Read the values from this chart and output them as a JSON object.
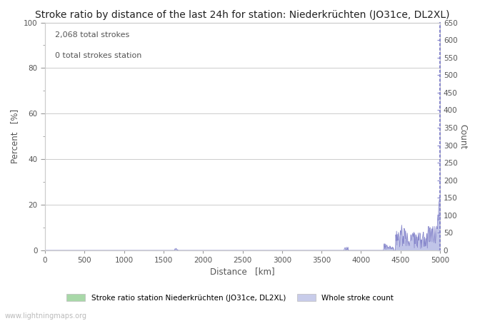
{
  "title": "Stroke ratio by distance of the last 24h for station: Niederkrüchten (JO31ce, DL2XL)",
  "annotation_line1": "2,068 total strokes",
  "annotation_line2": "0 total strokes station",
  "xlabel": "Distance   [km]",
  "ylabel_left": "Percent   [%]",
  "ylabel_right": "Count",
  "xlim": [
    0,
    5000
  ],
  "ylim_left": [
    0,
    100
  ],
  "ylim_right": [
    0,
    650
  ],
  "xticks": [
    0,
    500,
    1000,
    1500,
    2000,
    2500,
    3000,
    3500,
    4000,
    4500,
    5000
  ],
  "yticks_left": [
    0,
    20,
    40,
    60,
    80,
    100
  ],
  "yticks_right": [
    0,
    50,
    100,
    150,
    200,
    250,
    300,
    350,
    400,
    450,
    500,
    550,
    600,
    650
  ],
  "minor_yticks_left": [
    10,
    30,
    50,
    70,
    90
  ],
  "watermark": "www.lightningmaps.org",
  "legend_label1": "Stroke ratio station Niederkrüchten (JO31ce, DL2XL)",
  "legend_label2": "Whole stroke count",
  "legend_color1": "#a8d8a8",
  "legend_color2": "#c8ccea",
  "line_color": "#8888cc",
  "fill_color": "#c0c4e8",
  "background_color": "#ffffff",
  "grid_color": "#cccccc",
  "spine_color": "#cccccc",
  "right_spine_color": "#8888cc",
  "title_fontsize": 10,
  "tick_fontsize": 7.5,
  "label_fontsize": 8.5,
  "annot_fontsize": 8
}
